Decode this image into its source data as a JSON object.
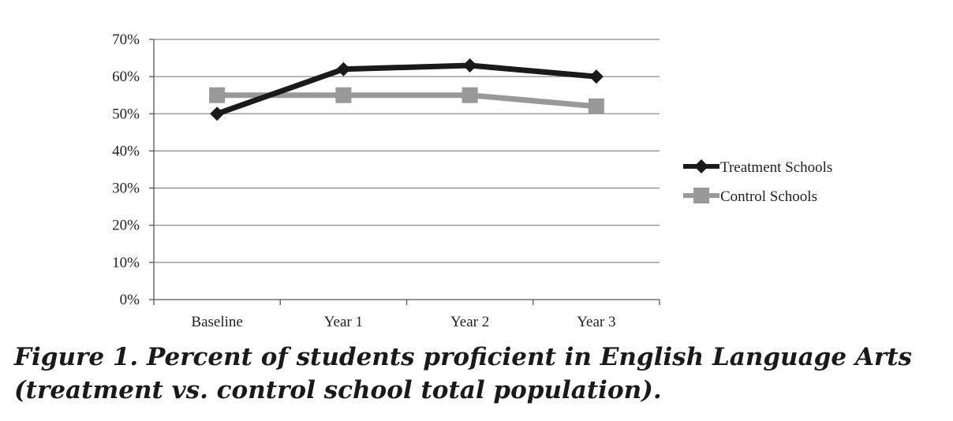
{
  "chart_data": {
    "type": "line",
    "categories": [
      "Baseline",
      "Year 1",
      "Year 2",
      "Year 3"
    ],
    "series": [
      {
        "name": "Treatment Schools",
        "values": [
          50,
          62,
          63,
          60
        ],
        "color": "#1a1a1a",
        "marker": "diamond"
      },
      {
        "name": "Control Schools",
        "values": [
          55,
          55,
          55,
          52
        ],
        "color": "#999999",
        "marker": "square"
      }
    ],
    "ylim": [
      0,
      70
    ],
    "yticks": [
      0,
      10,
      20,
      30,
      40,
      50,
      60,
      70
    ],
    "ytick_format": "percent",
    "grid": true,
    "legend": "right",
    "xlabel": "",
    "ylabel": ""
  },
  "caption": "Figure 1.  Percent of students proficient in English Language Arts (treatment vs. control school total population)."
}
